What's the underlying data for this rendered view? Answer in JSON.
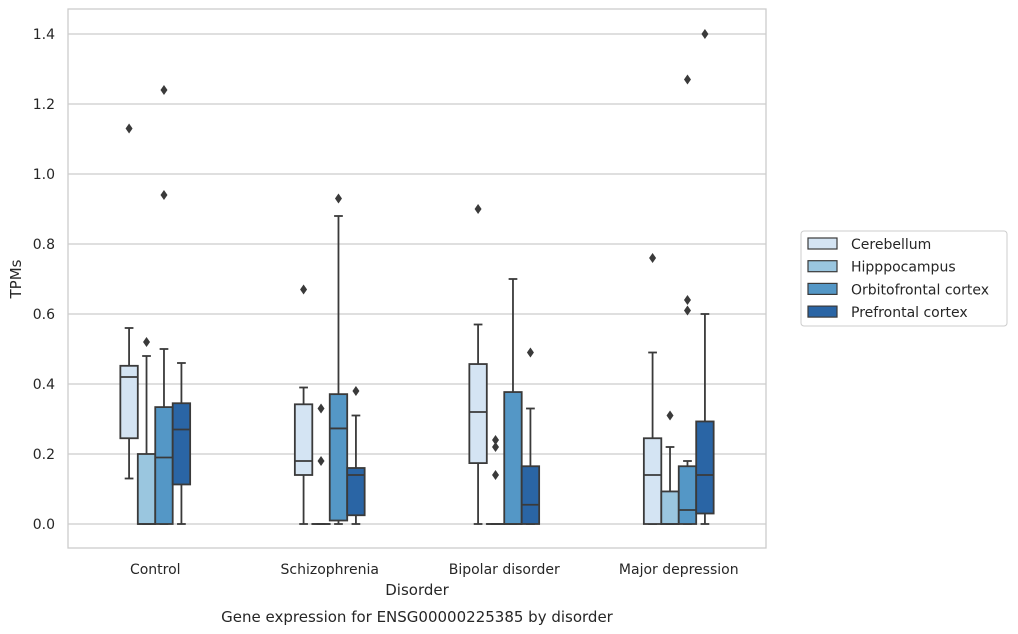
{
  "chart_data": {
    "type": "boxplot",
    "title": "",
    "xlabel": "Disorder",
    "ylabel": "TPMs",
    "caption": "Gene expression for ENSG00000225385 by disorder",
    "ylim": [
      -0.07,
      1.47
    ],
    "yticks": [
      0.0,
      0.2,
      0.4,
      0.6,
      0.8,
      1.0,
      1.2,
      1.4
    ],
    "ytick_labels": [
      "0.0",
      "0.2",
      "0.4",
      "0.6",
      "0.8",
      "1.0",
      "1.2",
      "1.4"
    ],
    "grid": true,
    "legend_position": "right",
    "categories": [
      "Control",
      "Schizophrenia",
      "Bipolar disorder",
      "Major depression"
    ],
    "series": [
      {
        "name": "Cerebellum",
        "color": "#d4e4f3",
        "boxes": [
          {
            "whislo": 0.13,
            "q1": 0.245,
            "med": 0.42,
            "q3": 0.452,
            "whishi": 0.56,
            "fliers": [
              1.13
            ]
          },
          {
            "whislo": 0.0,
            "q1": 0.14,
            "med": 0.18,
            "q3": 0.342,
            "whishi": 0.39,
            "fliers": [
              0.67
            ]
          },
          {
            "whislo": 0.0,
            "q1": 0.174,
            "med": 0.32,
            "q3": 0.457,
            "whishi": 0.57,
            "fliers": [
              0.9
            ]
          },
          {
            "whislo": 0.0,
            "q1": 0.0,
            "med": 0.14,
            "q3": 0.245,
            "whishi": 0.49,
            "fliers": [
              0.76
            ]
          }
        ]
      },
      {
        "name": "Hipppocampus",
        "color": "#9ac6df",
        "boxes": [
          {
            "whislo": 0.0,
            "q1": 0.0,
            "med": 0.0,
            "q3": 0.2,
            "whishi": 0.48,
            "fliers": [
              0.52
            ]
          },
          {
            "whislo": 0.0,
            "q1": 0.0,
            "med": 0.0,
            "q3": 0.0,
            "whishi": 0.0,
            "fliers": [
              0.33,
              0.18
            ]
          },
          {
            "whislo": 0.0,
            "q1": 0.0,
            "med": 0.0,
            "q3": 0.0,
            "whishi": 0.0,
            "fliers": [
              0.24,
              0.22,
              0.14
            ]
          },
          {
            "whislo": 0.0,
            "q1": 0.0,
            "med": 0.0,
            "q3": 0.093,
            "whishi": 0.22,
            "fliers": [
              0.31
            ]
          }
        ]
      },
      {
        "name": "Orbitofrontal cortex",
        "color": "#5497c6",
        "boxes": [
          {
            "whislo": 0.0,
            "q1": 0.0,
            "med": 0.19,
            "q3": 0.334,
            "whishi": 0.5,
            "fliers": [
              1.24,
              0.94
            ]
          },
          {
            "whislo": 0.0,
            "q1": 0.01,
            "med": 0.273,
            "q3": 0.371,
            "whishi": 0.88,
            "fliers": [
              0.93
            ]
          },
          {
            "whislo": 0.0,
            "q1": 0.0,
            "med": 0.0,
            "q3": 0.377,
            "whishi": 0.7,
            "fliers": []
          },
          {
            "whislo": 0.0,
            "q1": 0.0,
            "med": 0.04,
            "q3": 0.165,
            "whishi": 0.18,
            "fliers": [
              1.27,
              0.64,
              0.61
            ]
          }
        ]
      },
      {
        "name": "Prefrontal cortex",
        "color": "#2a65a5",
        "boxes": [
          {
            "whislo": 0.0,
            "q1": 0.113,
            "med": 0.27,
            "q3": 0.345,
            "whishi": 0.46,
            "fliers": []
          },
          {
            "whislo": 0.0,
            "q1": 0.025,
            "med": 0.14,
            "q3": 0.16,
            "whishi": 0.31,
            "fliers": [
              0.38
            ]
          },
          {
            "whislo": 0.0,
            "q1": 0.0,
            "med": 0.055,
            "q3": 0.165,
            "whishi": 0.33,
            "fliers": [
              0.49
            ]
          },
          {
            "whislo": 0.0,
            "q1": 0.03,
            "med": 0.14,
            "q3": 0.293,
            "whishi": 0.6,
            "fliers": [
              1.4
            ]
          }
        ]
      }
    ]
  }
}
